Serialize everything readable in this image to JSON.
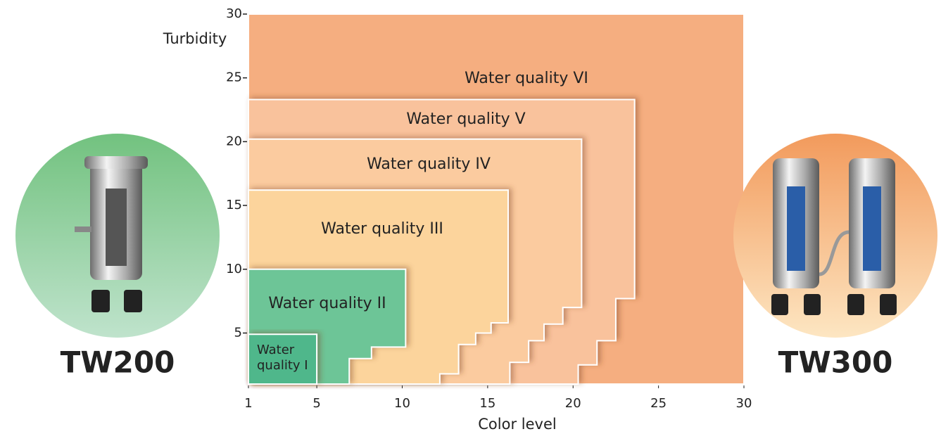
{
  "chart_data": {
    "type": "region",
    "y_label": "Turbidity",
    "x_label": "Color level",
    "xlim": [
      1,
      30
    ],
    "ylim": [
      1,
      30
    ],
    "xticks": [
      1,
      5,
      10,
      15,
      20,
      25,
      30
    ],
    "yticks": [
      5,
      10,
      15,
      20,
      25,
      30
    ],
    "series": [
      {
        "name": "Water quality VI",
        "color": "#f5ae80",
        "x": [
          1,
          30,
          30,
          1
        ],
        "y": [
          1,
          1,
          30,
          30
        ]
      },
      {
        "name": "Water quality V",
        "color": "#f9c29c",
        "x": [
          1,
          23.6,
          23.6,
          22.5,
          22.5,
          21.4,
          21.4,
          20.3,
          20.3,
          1
        ],
        "y": [
          23.3,
          23.3,
          7.7,
          7.7,
          4.4,
          4.4,
          2.5,
          2.5,
          1,
          1
        ]
      },
      {
        "name": "Water quality IV",
        "color": "#fbcb9f",
        "x": [
          1,
          20.5,
          20.5,
          19.4,
          19.4,
          18.3,
          18.3,
          17.4,
          17.4,
          16.3,
          16.3,
          1
        ],
        "y": [
          20.2,
          20.2,
          7.0,
          7.0,
          5.7,
          5.7,
          4.4,
          4.4,
          2.7,
          2.7,
          1,
          1
        ]
      },
      {
        "name": "Water quality III",
        "color": "#fcd49c",
        "x": [
          1,
          16.2,
          16.2,
          15.2,
          15.2,
          14.3,
          14.3,
          13.3,
          13.3,
          12.2,
          12.2,
          1
        ],
        "y": [
          16.2,
          16.2,
          5.8,
          5.8,
          5.0,
          5.0,
          4.1,
          4.1,
          1.8,
          1.8,
          1,
          1
        ]
      },
      {
        "name": "Water quality II",
        "color": "#6dc597",
        "x": [
          1,
          10.2,
          10.2,
          8.2,
          8.2,
          6.9,
          6.9,
          1
        ],
        "y": [
          10.0,
          10.0,
          3.9,
          3.9,
          3.0,
          3.0,
          1,
          1
        ]
      },
      {
        "name": "Water quality I",
        "color": "#4fb78b",
        "x": [
          1,
          5.0,
          5.0,
          1
        ],
        "y": [
          4.9,
          4.9,
          1,
          1
        ]
      }
    ]
  },
  "products": [
    {
      "name": "TW200"
    },
    {
      "name": "TW300"
    }
  ]
}
